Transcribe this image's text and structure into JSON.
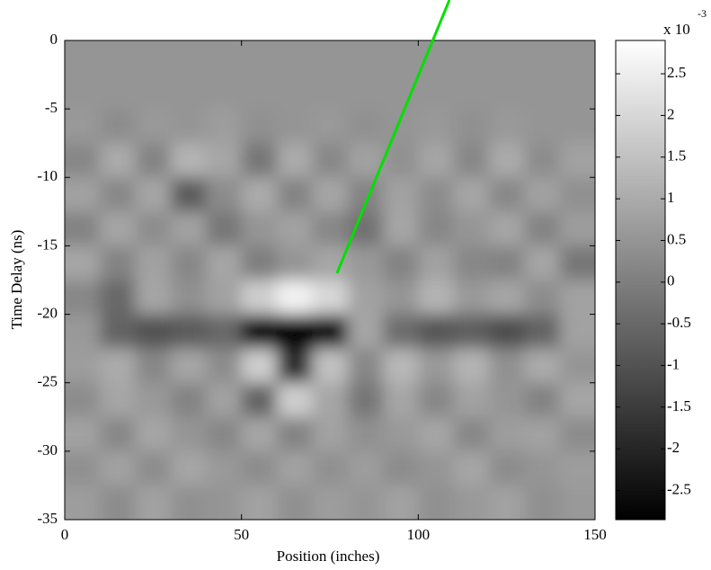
{
  "chart_data": {
    "type": "heatmap",
    "xlabel": "Position (inches)",
    "ylabel": "Time Delay (ns)",
    "x": [
      5,
      15,
      25,
      35,
      45,
      55,
      65,
      75,
      85,
      95,
      105,
      115,
      125,
      135,
      145
    ],
    "y": [
      -1.25,
      -3.75,
      -6.25,
      -8.75,
      -11.25,
      -13.75,
      -16.25,
      -18.75,
      -21.25,
      -23.75,
      -26.25,
      -28.75,
      -31.25,
      -33.75
    ],
    "z": [
      [
        0.5,
        0.5,
        0.5,
        0.5,
        0.5,
        0.5,
        0.5,
        0.5,
        0.5,
        0.5,
        0.5,
        0.5,
        0.5,
        0.5,
        0.5
      ],
      [
        0.5,
        0.5,
        0.5,
        0.5,
        0.5,
        0.5,
        0.5,
        0.5,
        0.5,
        0.5,
        0.5,
        0.5,
        0.5,
        0.5,
        0.5
      ],
      [
        0.6,
        0.3,
        0.6,
        0.5,
        0.7,
        0.4,
        0.5,
        0.6,
        0.4,
        0.5,
        0.6,
        0.4,
        0.6,
        0.5,
        0.5
      ],
      [
        0.2,
        1,
        0.1,
        1.2,
        0.9,
        -0.2,
        1,
        0.2,
        0.8,
        0.4,
        0.9,
        0.2,
        1,
        0.3,
        0.8
      ],
      [
        0.8,
        0.2,
        0.9,
        -0.8,
        0.3,
        1,
        0.1,
        0.9,
        0.1,
        0.8,
        0.3,
        0.9,
        0.2,
        0.8,
        0.4
      ],
      [
        0.1,
        0.9,
        0.3,
        0.8,
        -0.2,
        0.5,
        0.8,
        0.2,
        -0.3,
        0.9,
        0.2,
        0.5,
        0.9,
        0.1,
        0.7
      ],
      [
        0.9,
        0.1,
        0.8,
        0.2,
        0.9,
        0,
        0.5,
        0.9,
        0.6,
        0.1,
        0.8,
        0.2,
        0.1,
        0.9,
        -0.2
      ],
      [
        0.2,
        -0.5,
        0.9,
        0.4,
        0.8,
        1.8,
        2.6,
        2,
        0.8,
        0.5,
        1.2,
        0.6,
        0.9,
        0.3,
        0.8
      ],
      [
        0.6,
        -0.6,
        -1,
        -0.8,
        -0.5,
        -2.6,
        -2.8,
        -2.5,
        0.9,
        -0.4,
        -0.9,
        -0.7,
        -1.1,
        -0.6,
        0.8
      ],
      [
        0.7,
        1,
        0.2,
        0.9,
        0.3,
        1.8,
        -1.8,
        1.5,
        0.2,
        1.3,
        0.6,
        1.2,
        0.4,
        1,
        0.5
      ],
      [
        0.3,
        0.9,
        0.6,
        0.1,
        0.8,
        -0.6,
        1.8,
        0.9,
        -0.2,
        0.9,
        0.2,
        0.8,
        0.5,
        0.1,
        0.9
      ],
      [
        0.8,
        0.2,
        0.9,
        0.5,
        0.2,
        0.9,
        0.1,
        0.8,
        0.4,
        0.6,
        0.9,
        0.2,
        0.7,
        0.8,
        0.3
      ],
      [
        0.4,
        0.8,
        0.3,
        0.9,
        0.6,
        0.3,
        0.8,
        0.4,
        0.7,
        0.3,
        0.5,
        0.9,
        0.3,
        0.5,
        0.7
      ],
      [
        0.7,
        0.3,
        0.8,
        0.4,
        0.5,
        0.8,
        0.4,
        0.7,
        0.5,
        0.8,
        0.4,
        0.6,
        0.8,
        0.4,
        0.6
      ]
    ],
    "xlim": [
      0,
      150
    ],
    "xticks": [
      0,
      50,
      100,
      150
    ],
    "ylim": [
      -35,
      0
    ],
    "yticks": [
      0,
      -5,
      -10,
      -15,
      -20,
      -25,
      -30,
      -35
    ],
    "clim": [
      -2.85,
      2.9
    ],
    "colorbar_ticks": [
      2.5,
      2,
      1.5,
      1,
      0.5,
      0,
      -0.5,
      -1,
      -1.5,
      -2,
      -2.5
    ],
    "colorbar_label": "x 10",
    "colorbar_exponent": "-3",
    "lines": [
      {
        "color": "#00e000",
        "x": [
          77,
          108.8
        ],
        "y": [
          -17,
          2.95
        ]
      }
    ]
  }
}
